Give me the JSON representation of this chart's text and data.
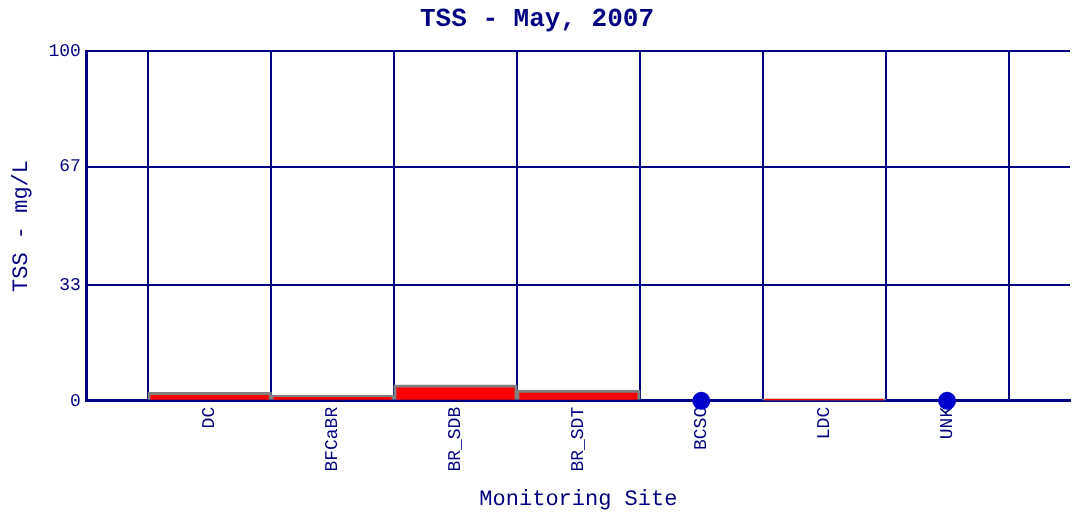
{
  "chart_data": {
    "type": "bar",
    "title": "TSS - May, 2007",
    "xlabel": "Monitoring Site",
    "ylabel": "TSS - mg/L",
    "categories": [
      "DC",
      "BFCaBR",
      "BR_SDB",
      "BR_SDT",
      "BCSC",
      "LDC",
      "UNK"
    ],
    "series": [
      {
        "color": "#ff0000",
        "values": [
          2.3,
          1.5,
          4.5,
          3,
          null,
          0.5,
          null
        ]
      },
      {
        "type": "scatter",
        "color": "#0000cc",
        "x": [
          "BCSC",
          "UNK"
        ],
        "values": [
          0,
          0
        ]
      }
    ],
    "ylim": [
      0,
      100
    ],
    "yticks": [
      0,
      33,
      67,
      100
    ],
    "grid": true,
    "legend": false,
    "marker": "circle"
  }
}
